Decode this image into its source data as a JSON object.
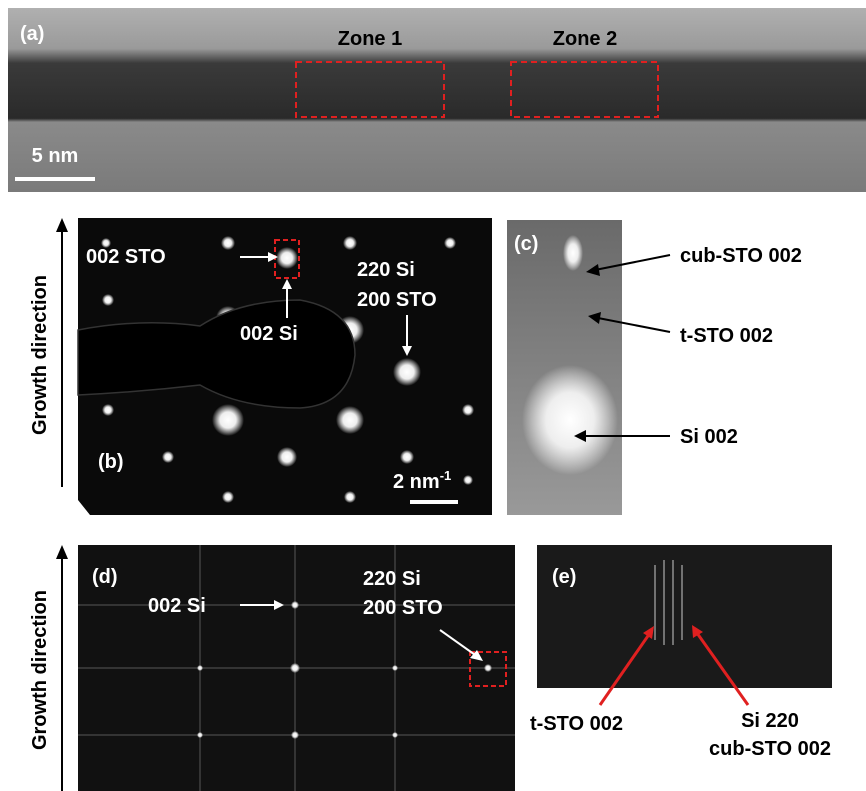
{
  "axis_label_top": "Growth direction",
  "axis_label_bottom": "Growth direction",
  "panel_a": {
    "label": "(a)",
    "zone1": "Zone 1",
    "zone2": "Zone 2",
    "scale": "5 nm"
  },
  "panel_b": {
    "label": "(b)",
    "spot_sto": "002 STO",
    "spot_si": "002 Si",
    "spot_220": "220 Si",
    "spot_200": "200 STO",
    "scale": "2 nm",
    "scale_sup": "-1"
  },
  "panel_c": {
    "label": "(c)",
    "cub": "cub-STO 002",
    "t": "t-STO 002",
    "si": "Si 002"
  },
  "panel_d": {
    "label": "(d)",
    "spot_si": "002 Si",
    "spot_220": "220 Si",
    "spot_200": "200 STO"
  },
  "panel_e": {
    "label": "(e)",
    "t": "t-STO 002",
    "si": "Si 220",
    "cub": "cub-STO 002"
  }
}
